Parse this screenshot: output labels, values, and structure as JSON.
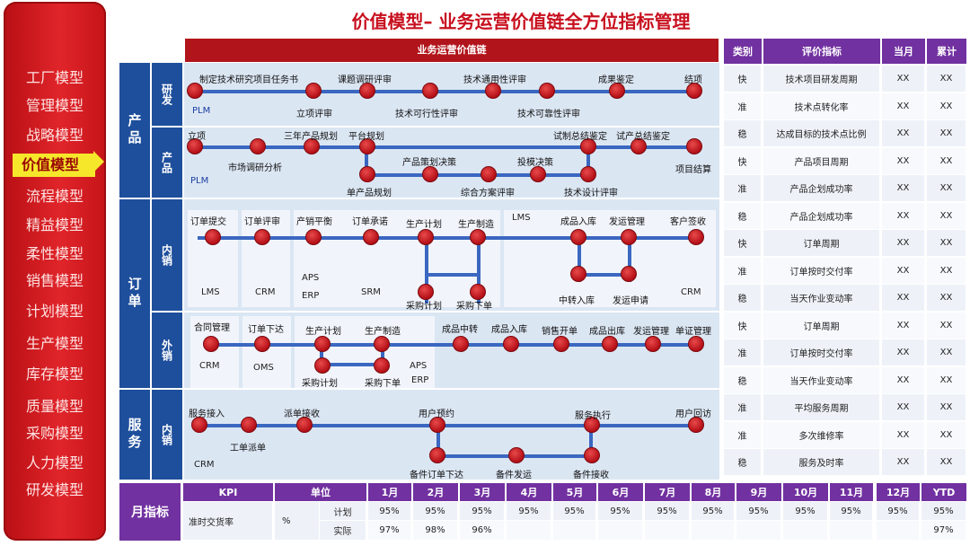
{
  "title": "价值模型– 业务运营价值链全方位指标管理",
  "sidebar": {
    "items": [
      "工厂模型",
      "管理模型",
      "战略模型",
      "价值模型",
      "流程模型",
      "精益模型",
      "柔性模型",
      "销售模型",
      "计划模型",
      "生产模型",
      "库存模型",
      "质量模型",
      "采购模型",
      "人力模型",
      "研发模型"
    ],
    "active": "价值模型"
  },
  "chain_header": "业务运营价值链",
  "groups": {
    "product": "产品",
    "order": "订单",
    "service": "服务",
    "monthly": "月指标"
  },
  "lanes": {
    "rd": "研发",
    "prod": "产品",
    "inner": "内销",
    "outer": "外销",
    "svc_inner": "内销"
  },
  "rd": {
    "labels": [
      "制定技术研究项目任务书",
      "立项评审",
      "课题调研评审",
      "技术可行性评审",
      "技术通用性评审",
      "技术可靠性评审",
      "成果鉴定",
      "结项"
    ],
    "sys": "PLM"
  },
  "prod": {
    "labels": [
      "立项",
      "市场调研分析",
      "三年产品规划",
      "平台规划",
      "单产品规划",
      "产品策划决策",
      "综合方案评审",
      "投模决策",
      "试制总结鉴定",
      "技术设计评审",
      "试产总结鉴定",
      "项目结算"
    ],
    "sys": "PLM"
  },
  "inner": {
    "labels": [
      "订单提交",
      "订单评审",
      "产销平衡",
      "订单承诺",
      "生产计划",
      "生产制造",
      "采购计划",
      "采购下单",
      "成品入库",
      "发运管理",
      "客户签收",
      "中转入库",
      "发运申请"
    ],
    "sys": [
      "LMS",
      "CRM",
      "APS",
      "ERP",
      "SRM",
      "LMS",
      "CRM"
    ]
  },
  "outer": {
    "labels": [
      "合同管理",
      "订单下达",
      "生产计划",
      "生产制造",
      "采购计划",
      "采购下单",
      "成品中转",
      "成品入库",
      "销售开单",
      "成品出库",
      "发运管理",
      "单证管理"
    ],
    "sys": [
      "CRM",
      "OMS",
      "APS",
      "ERP"
    ]
  },
  "svc": {
    "labels": [
      "服务接入",
      "工单派单",
      "派单接收",
      "用户预约",
      "备件订单下达",
      "备件发运",
      "服务执行",
      "备件接收",
      "用户回访"
    ],
    "sys": "CRM"
  },
  "metrics": {
    "headers": [
      "类别",
      "评价指标",
      "当月",
      "累计"
    ],
    "rows": [
      [
        "快",
        "技术项目研发周期",
        "XX",
        "XX"
      ],
      [
        "准",
        "技术点转化率",
        "XX",
        "XX"
      ],
      [
        "稳",
        "达成目标的技术点比例",
        "XX",
        "XX"
      ],
      [
        "快",
        "产品项目周期",
        "XX",
        "XX"
      ],
      [
        "准",
        "产品企划成功率",
        "XX",
        "XX"
      ],
      [
        "稳",
        "产品企划成功率",
        "XX",
        "XX"
      ],
      [
        "快",
        "订单周期",
        "XX",
        "XX"
      ],
      [
        "准",
        "订单按时交付率",
        "XX",
        "XX"
      ],
      [
        "稳",
        "当天作业变动率",
        "XX",
        "XX"
      ],
      [
        "快",
        "订单周期",
        "XX",
        "XX"
      ],
      [
        "准",
        "订单按时交付率",
        "XX",
        "XX"
      ],
      [
        "稳",
        "当天作业变动率",
        "XX",
        "XX"
      ],
      [
        "准",
        "平均服务周期",
        "XX",
        "XX"
      ],
      [
        "准",
        "多次维修率",
        "XX",
        "XX"
      ],
      [
        "稳",
        "服务及时率",
        "XX",
        "XX"
      ]
    ]
  },
  "kpi": {
    "headers": [
      "KPI",
      "单位",
      "1月",
      "2月",
      "3月",
      "4月",
      "5月",
      "6月",
      "7月",
      "8月",
      "9月",
      "10月",
      "11月",
      "12月",
      "YTD"
    ],
    "name": "准时交货率",
    "unit": "%",
    "plan_label": "计划",
    "actual_label": "实际",
    "plan": [
      "95%",
      "95%",
      "95%",
      "95%",
      "95%",
      "95%",
      "95%",
      "95%",
      "95%",
      "95%",
      "95%",
      "95%",
      "95%"
    ],
    "actual": [
      "97%",
      "98%",
      "96%",
      "",
      "",
      "",
      "",
      "",
      "",
      "",
      "",
      "",
      ""
    ],
    "plan_ytd": "95%",
    "actual_ytd": "97%"
  }
}
